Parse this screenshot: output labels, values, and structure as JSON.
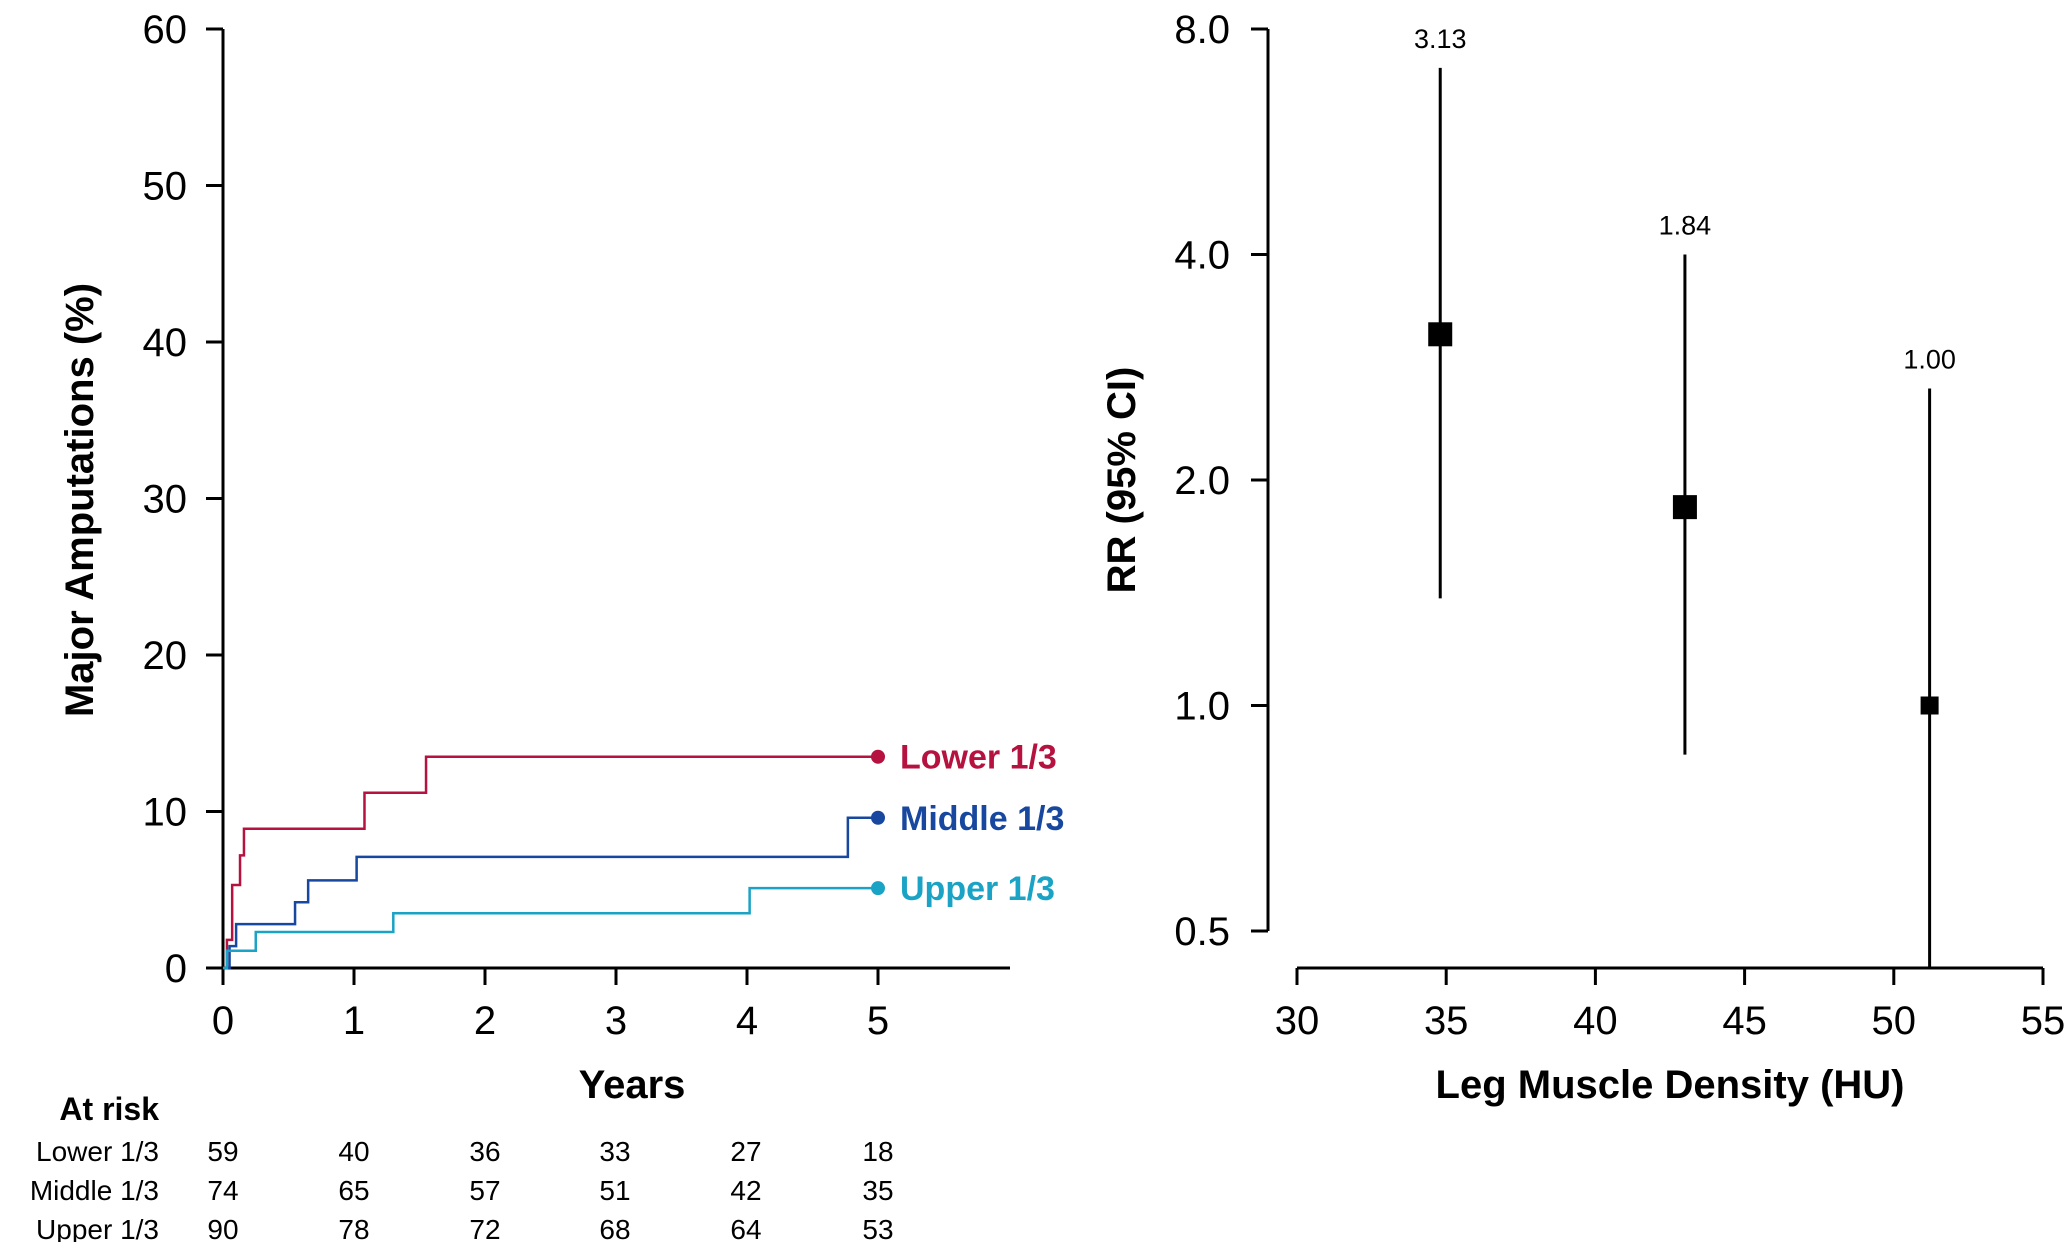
{
  "chart_data": [
    {
      "type": "line",
      "subtype": "step",
      "xlabel": "Years",
      "ylabel": "Major Amputations (%)",
      "xlim": [
        0,
        6
      ],
      "ylim": [
        0,
        60
      ],
      "xticks": [
        "0",
        "1",
        "2",
        "3",
        "4",
        "5"
      ],
      "yticks": [
        "0",
        "10",
        "20",
        "30",
        "40",
        "50",
        "60"
      ],
      "grid": false,
      "series": [
        {
          "name": "Lower 1/3",
          "color": "#b5123f",
          "end_value": 13.5,
          "x": [
            0,
            0.03,
            0.07,
            0.13,
            0.16,
            0.18,
            1.08,
            1.55,
            5.0
          ],
          "y": [
            0,
            1.8,
            5.3,
            7.2,
            8.9,
            8.9,
            11.2,
            13.5,
            13.5
          ]
        },
        {
          "name": "Middle 1/3",
          "color": "#17479e",
          "end_value": 9.6,
          "x": [
            0,
            0.05,
            0.1,
            0.55,
            0.65,
            1.02,
            4.77,
            5.0
          ],
          "y": [
            0,
            1.4,
            2.8,
            4.2,
            5.6,
            7.1,
            9.6,
            9.6
          ],
          "note_x": "steps read visually"
        },
        {
          "name": "Upper 1/3",
          "color": "#1aa3c4",
          "end_value": 5.1,
          "x": [
            0,
            0.03,
            0.25,
            1.3,
            4.02,
            5.0
          ],
          "y": [
            0,
            1.1,
            2.3,
            3.5,
            5.1,
            5.1
          ]
        }
      ],
      "at_risk": {
        "title": "At risk",
        "rows": [
          {
            "label": "Lower 1/3",
            "values": [
              "59",
              "40",
              "36",
              "33",
              "27",
              "18"
            ]
          },
          {
            "label": "Middle 1/3",
            "values": [
              "74",
              "65",
              "57",
              "51",
              "42",
              "35"
            ]
          },
          {
            "label": "Upper 1/3",
            "values": [
              "90",
              "78",
              "72",
              "68",
              "64",
              "53"
            ]
          }
        ]
      }
    },
    {
      "type": "scatter",
      "subtype": "error-bar",
      "xlabel": "Leg Muscle Density (HU)",
      "ylabel": "RR (95% CI)",
      "xlim": [
        30,
        55
      ],
      "ylim": [
        0.5,
        8.0
      ],
      "yscale": "log",
      "xticks": [
        "30",
        "35",
        "40",
        "45",
        "50",
        "55"
      ],
      "yticks": [
        "0.5",
        "1.0",
        "2.0",
        "4.0",
        "8.0"
      ],
      "grid": false,
      "points": [
        {
          "x": 34.8,
          "rr": 3.13,
          "lo": 1.39,
          "hi": 7.1,
          "label": "3.13"
        },
        {
          "x": 43.0,
          "rr": 1.84,
          "lo": 0.86,
          "hi": 4.0,
          "label": "1.84"
        },
        {
          "x": 51.2,
          "rr": 1.0,
          "lo": 0.41,
          "hi": 2.65,
          "label": "1.00"
        }
      ]
    }
  ]
}
